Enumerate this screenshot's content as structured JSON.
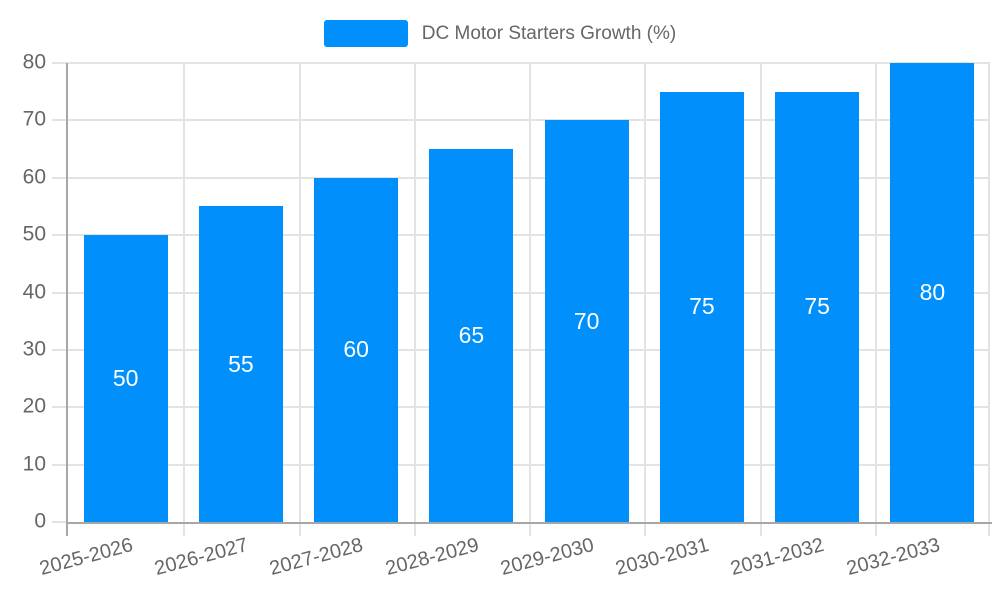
{
  "legend": {
    "label": "DC Motor Starters Growth (%)",
    "swatch_color": "#008FFB"
  },
  "chart_data": {
    "type": "bar",
    "title": "",
    "xlabel": "",
    "ylabel": "",
    "categories": [
      "2025-2026",
      "2026-2027",
      "2027-2028",
      "2028-2029",
      "2029-2030",
      "2030-2031",
      "2031-2032",
      "2032-2033"
    ],
    "series": [
      {
        "name": "DC Motor Starters Growth (%)",
        "values": [
          50,
          55,
          60,
          65,
          70,
          75,
          75,
          80
        ],
        "color": "#008FFB"
      }
    ],
    "data_labels": [
      "50",
      "55",
      "60",
      "65",
      "70",
      "75",
      "75",
      "80"
    ],
    "ylim": [
      0,
      80
    ],
    "yticks": [
      0,
      10,
      20,
      30,
      40,
      50,
      60,
      70,
      80
    ],
    "grid": true,
    "legend_position": "top-center",
    "x_label_rotation_deg": -15,
    "colors": {
      "bar": "#008FFB",
      "grid": "#e3e3e3",
      "axis": "#a6a6a6",
      "tick_text": "#666666",
      "data_label_text": "#ffffff",
      "background": "#ffffff"
    }
  }
}
